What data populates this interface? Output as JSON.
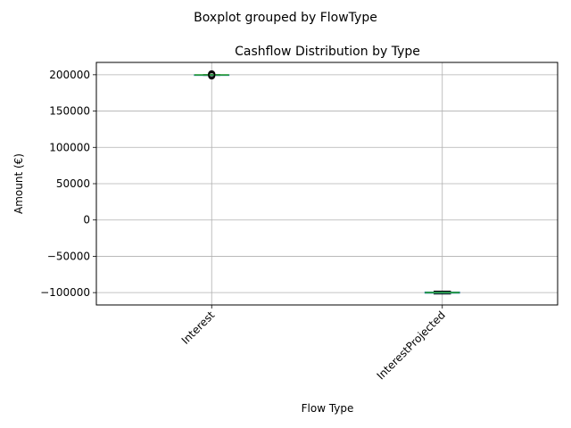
{
  "chart_data": {
    "type": "boxplot",
    "suptitle": "Boxplot grouped by FlowType",
    "title": "Cashflow Distribution by Type",
    "xlabel": "Flow Type",
    "ylabel": "Amount (€)",
    "categories": [
      "Interest",
      "InterestProjected"
    ],
    "ylim": [
      -117000,
      217000
    ],
    "yticks": [
      -100000,
      -50000,
      0,
      50000,
      100000,
      150000,
      200000
    ],
    "ytick_labels": [
      "−100000",
      "−50000",
      "0",
      "50000",
      "100000",
      "150000",
      "200000"
    ],
    "grid": true,
    "boxes": [
      {
        "category": "Interest",
        "whislo": 199000,
        "q1": 199500,
        "median": 199800,
        "q3": 200000,
        "whishi": 200300,
        "fliers": [
          198400,
          201200,
          199200,
          200600
        ]
      },
      {
        "category": "InterestProjected",
        "whislo": -102000,
        "q1": -100800,
        "median": -100000,
        "q3": -99200,
        "whishi": -98000,
        "fliers": []
      }
    ],
    "colors": {
      "box": "#1f77b4",
      "median": "#2ca02c",
      "grid": "#b0b0b0"
    }
  }
}
